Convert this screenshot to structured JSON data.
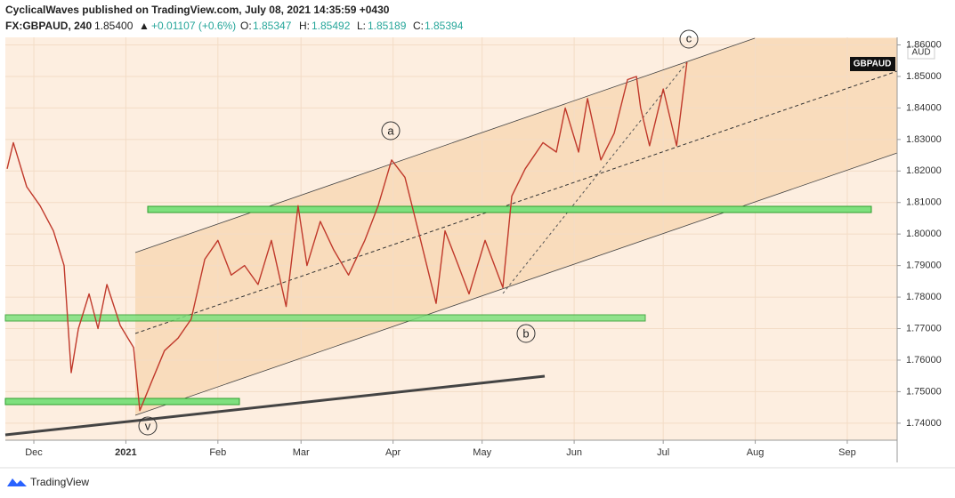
{
  "header": {
    "line1": "CyclicalWaves published on TradingView.com, July 08, 2021 14:35:59 +0430",
    "symbol": "FX:GBPAUD, 240",
    "price": "1.85400",
    "change": "+0.01107 (+0.6%)",
    "o_label": "O:",
    "o": "1.85347",
    "h_label": "H:",
    "h": "1.85492",
    "l_label": "L:",
    "l": "1.85189",
    "c_label": "C:",
    "c": "1.85394"
  },
  "chart_data": {
    "type": "line",
    "color": "#c0392b",
    "currency": "AUD",
    "symbol_tag": "GBPAUD",
    "annotations": [
      "a",
      "b",
      "c",
      "v"
    ],
    "x": [
      -9,
      -6.9,
      -2.4,
      2.1,
      6.6,
      10.2,
      12.6,
      15,
      18.6,
      21.6,
      24.6,
      29.1,
      33.6,
      35.7,
      39.6,
      44,
      48.6,
      53,
      57.6,
      62,
      66.5,
      71,
      75.5,
      80,
      85,
      89,
      92,
      96.5,
      101,
      106,
      111.5,
      116,
      120.5,
      125,
      129.5,
      135.5,
      138.5,
      143,
      146.6,
      152,
      158,
      161,
      165.5,
      171.5,
      176,
      179,
      183.5,
      186.5,
      191,
      195.5,
      200,
      203,
      204.4,
      207.4,
      212,
      216.5,
      220
    ],
    "values": [
      1.8207,
      1.829,
      1.815,
      1.809,
      1.801,
      1.79,
      1.756,
      1.77,
      1.781,
      1.77,
      1.784,
      1.771,
      1.764,
      1.744,
      1.753,
      1.763,
      1.767,
      1.773,
      1.792,
      1.798,
      1.787,
      1.79,
      1.784,
      1.798,
      1.777,
      1.809,
      1.79,
      1.804,
      1.795,
      1.787,
      1.798,
      1.809,
      1.8235,
      1.818,
      1.801,
      1.778,
      1.801,
      1.79,
      1.781,
      1.798,
      1.783,
      1.812,
      1.8207,
      1.829,
      1.826,
      1.84,
      1.826,
      1.843,
      1.8235,
      1.832,
      1.849,
      1.85,
      1.84,
      1.828,
      1.846,
      1.828,
      1.8545
    ],
    "xlim": [
      -9.6,
      290.8
    ],
    "xticks": [
      {
        "value": 0,
        "label": "Dec"
      },
      {
        "value": 31,
        "label": "2021"
      },
      {
        "value": 62,
        "label": "Feb"
      },
      {
        "value": 90,
        "label": "Mar"
      },
      {
        "value": 121,
        "label": "Apr"
      },
      {
        "value": 151,
        "label": "May"
      },
      {
        "value": 182,
        "label": "Jun"
      },
      {
        "value": 212,
        "label": "Jul"
      },
      {
        "value": 243,
        "label": "Aug"
      },
      {
        "value": 274,
        "label": "Sep"
      }
    ],
    "ylim": [
      1.7346,
      1.8624
    ],
    "yticks": [
      {
        "value": 1.74,
        "label": "1.74000"
      },
      {
        "value": 1.75,
        "label": "1.75000"
      },
      {
        "value": 1.76,
        "label": "1.76000"
      },
      {
        "value": 1.77,
        "label": "1.77000"
      },
      {
        "value": 1.78,
        "label": "1.78000"
      },
      {
        "value": 1.79,
        "label": "1.79000"
      },
      {
        "value": 1.8,
        "label": "1.80000"
      },
      {
        "value": 1.81,
        "label": "1.81000"
      },
      {
        "value": 1.82,
        "label": "1.82000"
      },
      {
        "value": 1.83,
        "label": "1.83000"
      },
      {
        "value": 1.84,
        "label": "1.84000"
      },
      {
        "value": 1.85,
        "label": "1.85000"
      },
      {
        "value": 1.86,
        "label": "1.86000"
      }
    ]
  },
  "footer": {
    "brand": "TradingView"
  }
}
